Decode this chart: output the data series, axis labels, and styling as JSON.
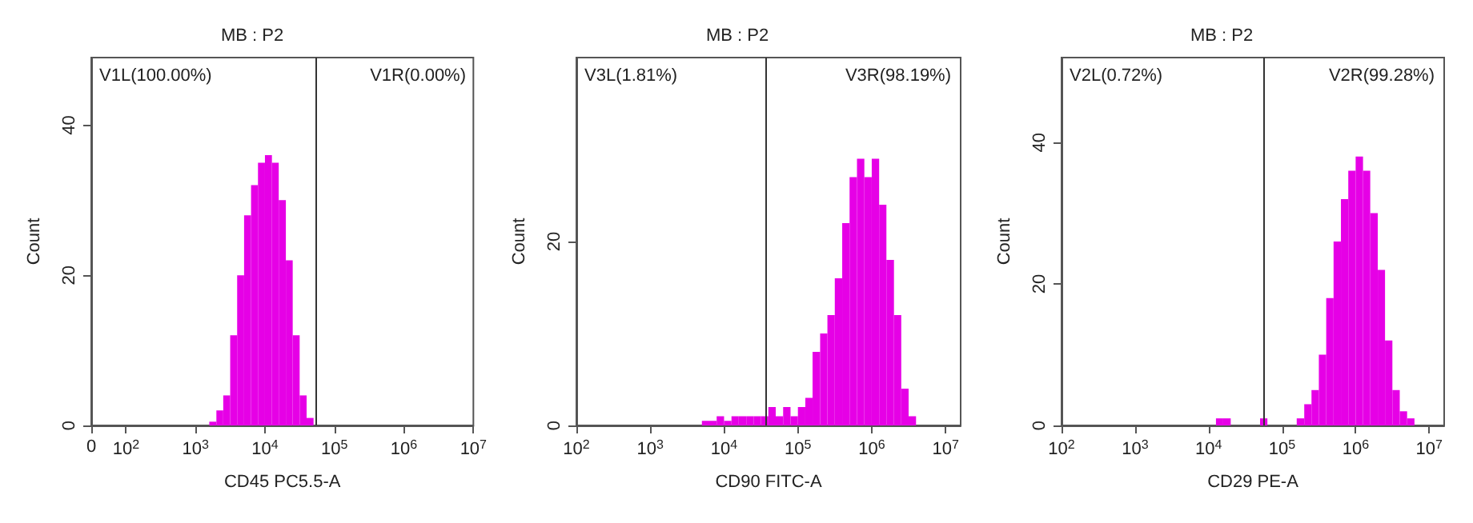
{
  "chart_data": [
    {
      "type": "histogram",
      "title": "MB : P2",
      "xlabel": "CD45 PC5.5-A",
      "ylabel": "Count",
      "color": "#e600e6",
      "log": "x",
      "bins": [
        1580,
        2000,
        2510,
        3160,
        3980,
        5010,
        6310,
        7940,
        10000,
        12600,
        15800,
        20000,
        25100,
        31600,
        39800,
        50100
      ],
      "values": [
        0.5,
        2,
        4,
        12,
        20,
        28,
        32,
        35,
        36,
        35,
        30,
        22,
        12,
        4,
        1
      ],
      "xlim": [
        0,
        10000000
      ],
      "xticks": [
        0,
        {
          "value": 100,
          "label": "10$^{2}$"
        },
        {
          "value": 1000,
          "label": "10$^{3}$"
        },
        {
          "value": 10000,
          "label": "10$^{4}$"
        },
        {
          "value": 100000,
          "label": "10$^{5}$"
        },
        {
          "value": 1000000,
          "label": "10$^{6}$"
        },
        {
          "value": 10000000,
          "label": "10$^{7}$"
        }
      ],
      "ylim": [
        0,
        49
      ],
      "yticks": [
        0,
        20,
        40
      ],
      "ref_lines": [
        {
          "axis": "x",
          "value": 54000,
          "label": null,
          "color": "#333333"
        }
      ],
      "annotations": [
        "V1L(100.00%)",
        "V1R(0.00%)"
      ]
    },
    {
      "type": "histogram",
      "title": "MB : P2",
      "xlabel": "CD90 FITC-A",
      "ylabel": "Count",
      "color": "#e600e6",
      "log": "x",
      "bins": [
        5010,
        6310,
        7940,
        10000,
        12600,
        15800,
        20000,
        25100,
        31600,
        39800,
        50100,
        63100,
        79400,
        100000,
        126000,
        158000,
        200000,
        251000,
        316000,
        398000,
        501000,
        631000,
        794000,
        1000000,
        1260000,
        1580000,
        2000000,
        2510000,
        3160000,
        3980000
      ],
      "values": [
        0.5,
        0.5,
        1,
        0.5,
        1,
        1,
        1,
        1,
        1,
        2,
        1,
        2,
        1,
        2,
        3,
        8,
        10,
        12,
        16,
        22,
        27,
        29,
        27,
        29,
        24,
        18,
        12,
        4,
        1
      ],
      "xlim": [
        100,
        16000000
      ],
      "xticks": [
        {
          "value": 100,
          "label": "10$^{2}$"
        },
        {
          "value": 1000,
          "label": "10$^{3}$"
        },
        {
          "value": 10000,
          "label": "10$^{4}$"
        },
        {
          "value": 100000,
          "label": "10$^{5}$"
        },
        {
          "value": 1000000,
          "label": "10$^{6}$"
        },
        {
          "value": 10000000,
          "label": "10$^{7}$"
        }
      ],
      "ylim": [
        0,
        40
      ],
      "yticks": [
        0,
        20
      ],
      "ref_lines": [
        {
          "axis": "x",
          "value": 36000,
          "label": null,
          "color": "#333333"
        }
      ],
      "annotations": [
        "V3L(1.81%)",
        "V3R(98.19%)"
      ]
    },
    {
      "type": "histogram",
      "title": "MB : P2",
      "xlabel": "CD29 PE-A",
      "ylabel": "Count",
      "color": "#e600e6",
      "log": "x",
      "bins": [
        12600,
        15800,
        20000,
        25100,
        31600,
        39800,
        50100,
        63100,
        79400,
        100000,
        126000,
        158000,
        200000,
        251000,
        316000,
        398000,
        501000,
        631000,
        794000,
        1000000,
        1260000,
        1580000,
        2000000,
        2510000,
        3160000,
        3980000,
        5010000,
        6310000
      ],
      "values": [
        1,
        1,
        0,
        0,
        0,
        0,
        1,
        0,
        0,
        0,
        0,
        1,
        3,
        5,
        10,
        18,
        26,
        32,
        36,
        38,
        36,
        30,
        22,
        12,
        5,
        2,
        1
      ],
      "xlim": [
        100,
        16000000
      ],
      "xticks": [
        {
          "value": 100,
          "label": "10$^{2}$"
        },
        {
          "value": 1000,
          "label": "10$^{3}$"
        },
        {
          "value": 10000,
          "label": "10$^{4}$"
        },
        {
          "value": 100000,
          "label": "10$^{5}$"
        },
        {
          "value": 1000000,
          "label": "10$^{6}$"
        },
        {
          "value": 10000000,
          "label": "10$^{7}$"
        }
      ],
      "ylim": [
        0,
        52
      ],
      "yticks": [
        0,
        20,
        40
      ],
      "ref_lines": [
        {
          "axis": "x",
          "value": 56000,
          "label": null,
          "color": "#333333"
        }
      ],
      "annotations": [
        "V2L(0.72%)",
        "V2R(99.28%)"
      ]
    }
  ]
}
